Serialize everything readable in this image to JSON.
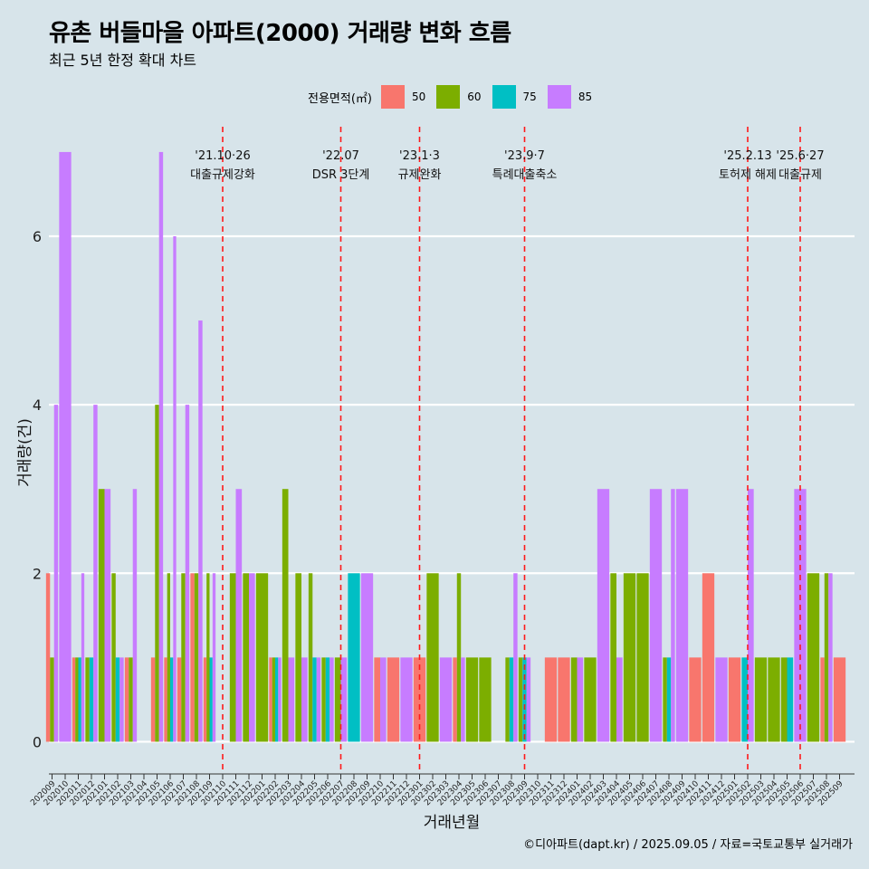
{
  "title": "유촌 버들마을 아파트(2000) 거래량 변화 흐름",
  "subtitle": "최근 5년 한정 확대 차트",
  "caption": "©디아파트(dapt.kr) / 2025.09.05 / 자료=국토교통부 실거래가",
  "legend": {
    "title": "전용면적(㎡)",
    "items": [
      {
        "label": "50",
        "color": "#f8766d"
      },
      {
        "label": "60",
        "color": "#7cae00"
      },
      {
        "label": "75",
        "color": "#00bfc4"
      },
      {
        "label": "85",
        "color": "#c77cff"
      }
    ]
  },
  "chart_data": {
    "type": "bar",
    "xlabel": "거래년월",
    "ylabel": "거래량(건)",
    "ylim": [
      -0.35,
      7.3
    ],
    "yticks": [
      0,
      2,
      4,
      6
    ],
    "grid": true,
    "categories": [
      "202009",
      "202010",
      "202011",
      "202012",
      "202101",
      "202102",
      "202103",
      "202104",
      "202105",
      "202106",
      "202107",
      "202108",
      "202109",
      "202110",
      "202111",
      "202112",
      "202201",
      "202202",
      "202203",
      "202204",
      "202205",
      "202206",
      "202207",
      "202208",
      "202209",
      "202210",
      "202211",
      "202212",
      "202301",
      "202302",
      "202303",
      "202304",
      "202305",
      "202306",
      "202307",
      "202308",
      "202309",
      "202310",
      "202311",
      "202312",
      "202401",
      "202402",
      "202403",
      "202404",
      "202405",
      "202406",
      "202407",
      "202408",
      "202409",
      "202410",
      "202411",
      "202412",
      "202501",
      "202502",
      "202503",
      "202504",
      "202505",
      "202506",
      "202507",
      "202508",
      "202509"
    ],
    "series": [
      {
        "name": "50",
        "values": [
          2,
          0,
          1,
          0,
          0,
          0,
          1,
          0,
          1,
          1,
          1,
          2,
          1,
          0,
          0,
          0,
          0,
          1,
          0,
          0,
          0,
          0,
          0,
          0,
          0,
          1,
          1,
          0,
          1,
          0,
          0,
          1,
          0,
          0,
          0,
          0,
          0,
          0,
          1,
          1,
          0,
          0,
          0,
          0,
          0,
          0,
          0,
          0,
          0,
          1,
          2,
          0,
          1,
          0,
          0,
          0,
          0,
          0,
          0,
          1,
          1
        ]
      },
      {
        "name": "60",
        "values": [
          1,
          0,
          1,
          1,
          3,
          2,
          1,
          0,
          4,
          2,
          2,
          2,
          2,
          0,
          2,
          2,
          2,
          1,
          3,
          2,
          2,
          1,
          1,
          0,
          0,
          0,
          0,
          0,
          0,
          2,
          0,
          2,
          1,
          1,
          0,
          1,
          1,
          0,
          0,
          0,
          1,
          1,
          0,
          2,
          2,
          2,
          0,
          1,
          0,
          0,
          0,
          0,
          0,
          0,
          1,
          1,
          1,
          0,
          2,
          2,
          0
        ]
      },
      {
        "name": "75",
        "values": [
          0,
          0,
          1,
          1,
          0,
          1,
          0,
          0,
          0,
          1,
          0,
          0,
          1,
          0,
          0,
          0,
          0,
          1,
          0,
          0,
          1,
          1,
          0,
          2,
          0,
          0,
          0,
          0,
          0,
          0,
          0,
          0,
          0,
          0,
          0,
          1,
          1,
          0,
          0,
          0,
          0,
          0,
          0,
          0,
          0,
          0,
          0,
          1,
          0,
          0,
          0,
          0,
          0,
          1,
          0,
          0,
          1,
          0,
          0,
          0,
          0
        ]
      },
      {
        "name": "85",
        "values": [
          4,
          7,
          2,
          4,
          3,
          1,
          3,
          0,
          7,
          6,
          4,
          5,
          2,
          0,
          3,
          2,
          0,
          1,
          1,
          1,
          1,
          1,
          1,
          0,
          2,
          1,
          0,
          1,
          0,
          0,
          1,
          1,
          0,
          0,
          0,
          2,
          1,
          0,
          0,
          0,
          1,
          0,
          3,
          1,
          0,
          0,
          3,
          3,
          3,
          0,
          0,
          1,
          0,
          3,
          0,
          0,
          0,
          3,
          0,
          2,
          0
        ]
      }
    ],
    "annotations": [
      {
        "x": "202110",
        "date": "'21.10·26",
        "label": "대출규제강화"
      },
      {
        "x": "202207",
        "date": "'22.07",
        "label": "DSR 3단계"
      },
      {
        "x": "202301",
        "date": "'23.1·3",
        "label": "규제완화"
      },
      {
        "x": "202309",
        "date": "'23.9·7",
        "label": "특례대출축소"
      },
      {
        "x": "202502",
        "date": "'25.2.13",
        "label": "토허제 해제"
      },
      {
        "x": "202506",
        "date": "'25.6·27",
        "label": "대출규제"
      }
    ]
  }
}
